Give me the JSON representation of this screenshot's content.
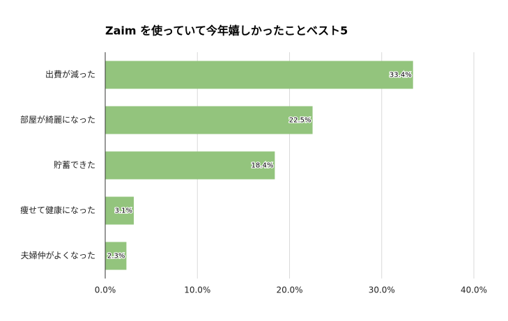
{
  "chart_data": {
    "type": "hbar",
    "title": "Zaim を使っていて今年嬉しかったことベスト5",
    "categories": [
      "出費が減った",
      "部屋が綺麗になった",
      "貯蓄できた",
      "痩せて健康になった",
      "夫婦仲がよくなった"
    ],
    "values": [
      33.4,
      22.5,
      18.4,
      3.1,
      2.3
    ],
    "value_labels": [
      "33.4%",
      "22.5%",
      "18.4%",
      "3.1%",
      "2.3%"
    ],
    "color": "#93c47d",
    "xlim": [
      0,
      40
    ],
    "xticks": [
      {
        "value": 0,
        "label": "0.0%"
      },
      {
        "value": 10,
        "label": "10.0%"
      },
      {
        "value": 20,
        "label": "20.0%"
      },
      {
        "value": 30,
        "label": "30.0%"
      },
      {
        "value": 40,
        "label": "40.0%"
      }
    ],
    "grid": true
  }
}
